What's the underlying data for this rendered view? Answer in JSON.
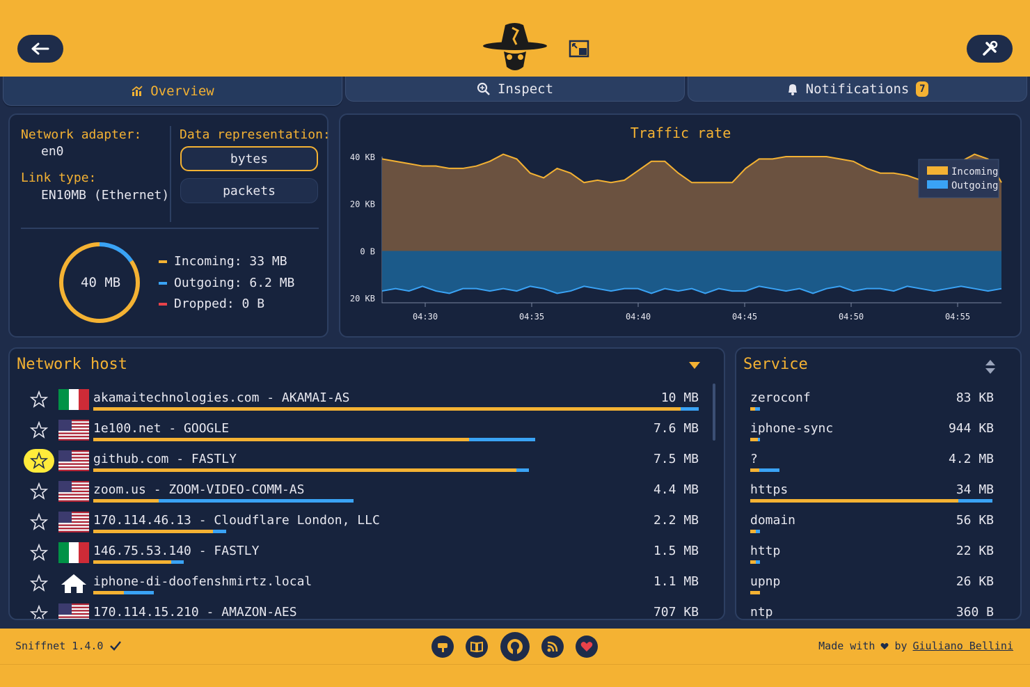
{
  "app": {
    "tabs": [
      {
        "label": "Overview",
        "icon": "chart-icon",
        "active": true
      },
      {
        "label": "Inspect",
        "icon": "magnifier-icon",
        "active": false
      },
      {
        "label": "Notifications",
        "icon": "bell-icon",
        "active": false,
        "badge": "7"
      }
    ]
  },
  "info": {
    "adapter_label": "Network adapter:",
    "adapter_value": "en0",
    "link_label": "Link type:",
    "link_value": "EN10MB (Ethernet)",
    "repr_label": "Data representation:",
    "repr_options": [
      "bytes",
      "packets"
    ],
    "repr_selected": "bytes",
    "total": "40 MB",
    "incoming": "Incoming: 33 MB",
    "outgoing": "Outgoing: 6.2 MB",
    "dropped": "Dropped: 0 B",
    "incoming_fraction": 0.845,
    "outgoing_fraction": 0.155
  },
  "chart_data": {
    "type": "area",
    "title": "Traffic rate",
    "x_ticks": [
      "04:30",
      "04:35",
      "04:40",
      "04:45",
      "04:50",
      "04:55"
    ],
    "y_ticks": [
      "40 KB",
      "20 KB",
      "0 B",
      "20 KB"
    ],
    "ylim_kb": [
      -22,
      40
    ],
    "series": [
      {
        "name": "Incoming",
        "color": "#f4b233",
        "values": [
          39,
          38,
          37,
          36,
          36,
          35,
          35,
          36,
          38,
          41,
          39,
          33,
          31,
          35,
          33,
          29,
          30,
          29,
          30,
          34,
          38,
          38,
          33,
          29,
          29,
          29,
          29,
          35,
          39,
          39,
          40,
          40,
          40,
          40,
          39,
          38,
          35,
          33,
          33,
          32,
          30,
          32,
          36,
          38,
          41,
          39,
          29
        ]
      },
      {
        "name": "Outgoing",
        "color": "#3aa3f5",
        "values": [
          -17,
          -16,
          -17,
          -15,
          -17,
          -18,
          -16,
          -16,
          -17,
          -16,
          -17,
          -15,
          -16,
          -18,
          -17,
          -15,
          -16,
          -17,
          -16,
          -16,
          -18,
          -16,
          -17,
          -16,
          -18,
          -16,
          -17,
          -17,
          -15,
          -16,
          -17,
          -16,
          -18,
          -16,
          -15,
          -17,
          -16,
          -16,
          -17,
          -15,
          -16,
          -17,
          -16,
          -15,
          -16,
          -17,
          -16
        ]
      }
    ]
  },
  "hosts": {
    "title": "Network host",
    "rows": [
      {
        "name": "akamaitechnologies.com - AKAMAI-AS",
        "value": "10 MB",
        "flag": "it",
        "fav": false,
        "in": 0.97,
        "out": 0.03,
        "total": 1.0
      },
      {
        "name": "1e100.net - GOOGLE",
        "value": "7.6 MB",
        "flag": "us",
        "fav": false,
        "in": 0.85,
        "out": 0.15,
        "total": 0.73
      },
      {
        "name": "github.com - FASTLY",
        "value": "7.5 MB",
        "flag": "us",
        "fav": true,
        "in": 0.97,
        "out": 0.03,
        "total": 0.72
      },
      {
        "name": "zoom.us - ZOOM-VIDEO-COMM-AS",
        "value": "4.4 MB",
        "flag": "us",
        "fav": false,
        "in": 0.25,
        "out": 0.75,
        "total": 0.43
      },
      {
        "name": "170.114.46.13 - Cloudflare London, LLC",
        "value": "2.2 MB",
        "flag": "us",
        "fav": false,
        "in": 0.9,
        "out": 0.1,
        "total": 0.22
      },
      {
        "name": "146.75.53.140 - FASTLY",
        "value": "1.5 MB",
        "flag": "it",
        "fav": false,
        "in": 0.86,
        "out": 0.14,
        "total": 0.15
      },
      {
        "name": "iphone-di-doofenshmirtz.local",
        "value": "1.1 MB",
        "flag": "home",
        "fav": false,
        "in": 0.5,
        "out": 0.5,
        "total": 0.1
      },
      {
        "name": "170.114.15.210 - AMAZON-AES",
        "value": "707 KB",
        "flag": "us",
        "fav": false,
        "in": 0.5,
        "out": 0.5,
        "total": 0.07
      }
    ]
  },
  "services": {
    "title": "Service",
    "rows": [
      {
        "name": "zeroconf",
        "value": "83 KB",
        "in": 0.5,
        "out": 0.5,
        "total": 0.04
      },
      {
        "name": "iphone-sync",
        "value": "944 KB",
        "in": 0.8,
        "out": 0.2,
        "total": 0.04
      },
      {
        "name": "?",
        "value": "4.2 MB",
        "in": 0.3,
        "out": 0.7,
        "total": 0.12
      },
      {
        "name": "https",
        "value": "34 MB",
        "in": 0.86,
        "out": 0.14,
        "total": 1.0
      },
      {
        "name": "domain",
        "value": "56 KB",
        "in": 0.6,
        "out": 0.4,
        "total": 0.04
      },
      {
        "name": "http",
        "value": "22 KB",
        "in": 0.6,
        "out": 0.4,
        "total": 0.04
      },
      {
        "name": "upnp",
        "value": "26 KB",
        "in": 1.0,
        "out": 0.0,
        "total": 0.04
      },
      {
        "name": "ntp",
        "value": "360 B",
        "in": 0.5,
        "out": 0.5,
        "total": 0.02
      }
    ]
  },
  "footer": {
    "version": "Sniffnet 1.4.0",
    "made_with": "Made with",
    "by": "by",
    "author": "Giuliano Bellini",
    "icons": [
      "wiki-icon",
      "book-icon",
      "github-icon",
      "rss-icon",
      "heart-icon"
    ]
  },
  "colors": {
    "accent": "#f4b233",
    "background": "#1e2c4a",
    "incoming": "#f4b233",
    "outgoing": "#3aa3f5",
    "dropped": "#e8424a"
  }
}
